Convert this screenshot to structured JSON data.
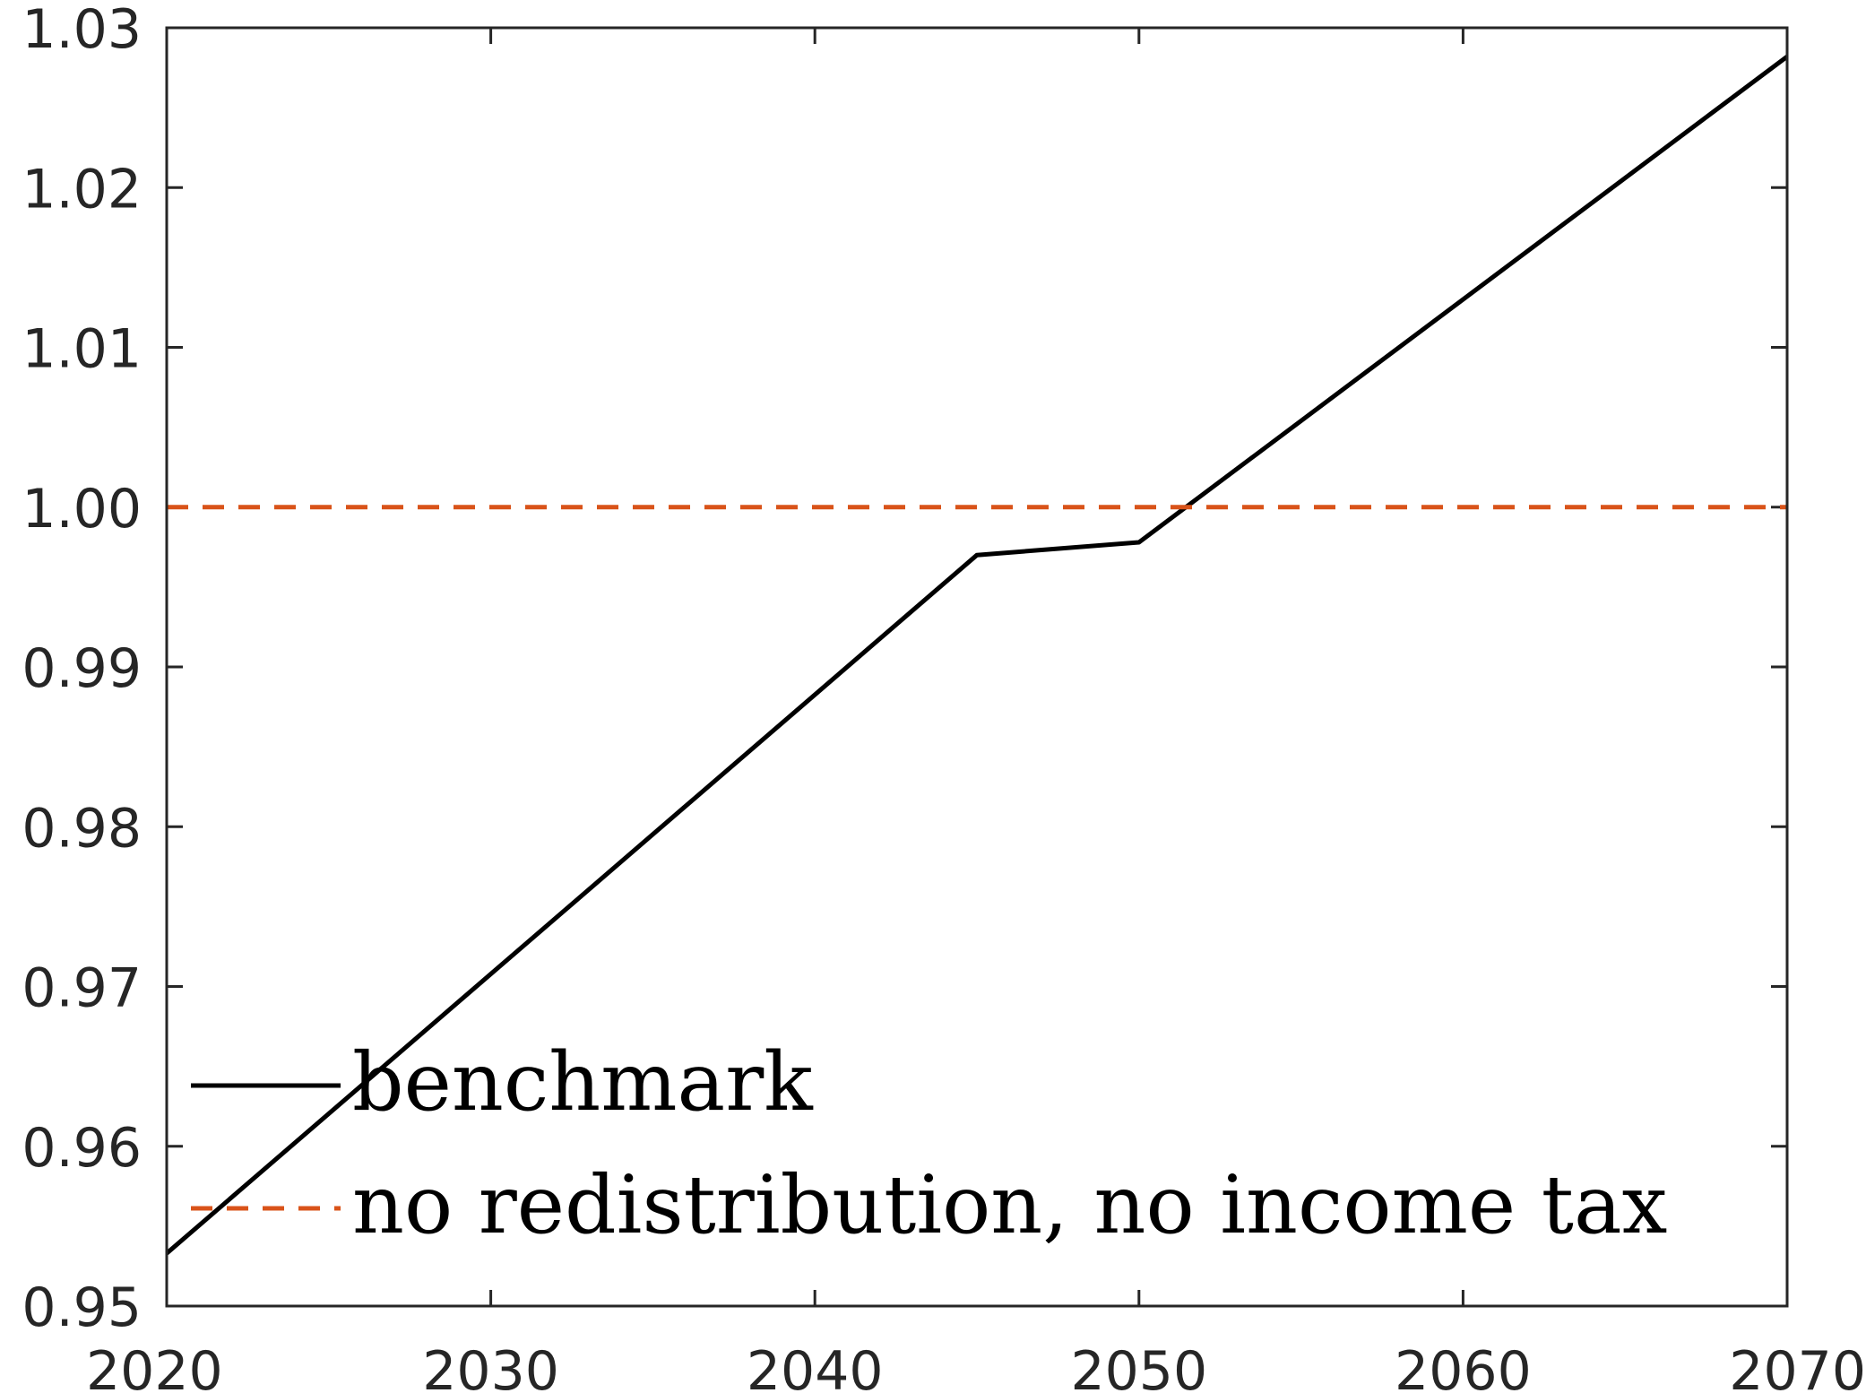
{
  "chart_data": {
    "type": "line",
    "title": "",
    "xlabel": "",
    "ylabel": "",
    "xlim": [
      2020,
      2070
    ],
    "ylim": [
      0.95,
      1.03
    ],
    "xticks": [
      "2020",
      "2030",
      "2040",
      "2050",
      "2060",
      "2070"
    ],
    "yticks": [
      "0.95",
      "0.96",
      "0.97",
      "0.98",
      "0.99",
      "1.00",
      "1.01",
      "1.02",
      "1.03"
    ],
    "grid": false,
    "legend_position": "bottom-left",
    "series": [
      {
        "name": "benchmark",
        "color": "#000000",
        "dash": "solid",
        "x": [
          2020,
          2045,
          2050,
          2070
        ],
        "y": [
          0.9533,
          0.997,
          0.9978,
          1.0282
        ]
      },
      {
        "name": "no redistribution, no income tax",
        "color": "#d95319",
        "dash": "dashed",
        "x": [
          2020,
          2070
        ],
        "y": [
          1.0,
          1.0
        ]
      }
    ]
  }
}
